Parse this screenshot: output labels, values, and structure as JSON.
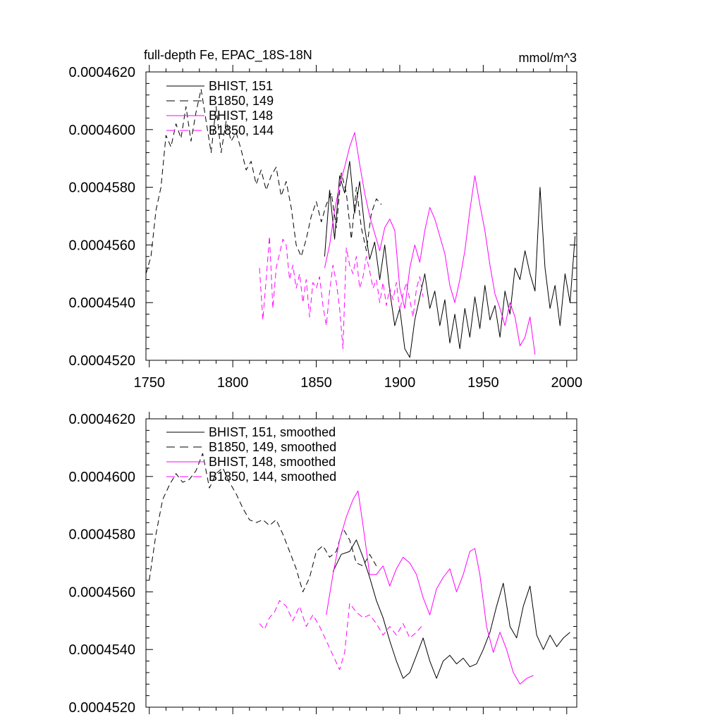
{
  "chart_data": [
    {
      "type": "line",
      "title": "full-depth Fe, EPAC_18S-18N",
      "units": "mmol/m^3",
      "xlim": [
        1748,
        2006
      ],
      "ylim": [
        0.000452,
        0.000462
      ],
      "xticks": [
        1750,
        1800,
        1850,
        1900,
        1950,
        2000
      ],
      "xtick_labels": [
        "1750",
        "1800",
        "1850",
        "1900",
        "1950",
        "2000"
      ],
      "yticks": [
        0.000452,
        0.000454,
        0.000456,
        0.000458,
        0.00046,
        0.000462
      ],
      "ytick_labels": [
        "0.0004520",
        "0.0004540",
        "0.0004560",
        "0.0004580",
        "0.0004600",
        "0.0004620"
      ],
      "series": [
        {
          "name": "BHIST, 151",
          "color": "#000000",
          "dash": "solid",
          "x": [
            1855,
            1858,
            1861,
            1864,
            1867,
            1870,
            1873,
            1876,
            1879,
            1882,
            1885,
            1888,
            1891,
            1894,
            1897,
            1900,
            1903,
            1906,
            1909,
            1912,
            1915,
            1918,
            1921,
            1924,
            1927,
            1930,
            1933,
            1936,
            1939,
            1942,
            1945,
            1948,
            1951,
            1954,
            1957,
            1960,
            1963,
            1966,
            1969,
            1972,
            1975,
            1978,
            1981,
            1984,
            1987,
            1990,
            1993,
            1996,
            1999,
            2002,
            2005
          ],
          "y": [
            0.0004556,
            0.0004579,
            0.0004562,
            0.0004584,
            0.0004578,
            0.0004589,
            0.0004571,
            0.0004582,
            0.0004566,
            0.0004555,
            0.0004561,
            0.0004548,
            0.000456,
            0.0004544,
            0.0004532,
            0.0004538,
            0.0004524,
            0.0004521,
            0.0004534,
            0.0004542,
            0.000455,
            0.0004538,
            0.0004544,
            0.0004532,
            0.0004541,
            0.0004526,
            0.0004536,
            0.0004524,
            0.0004538,
            0.0004528,
            0.0004542,
            0.0004531,
            0.0004546,
            0.0004534,
            0.0004539,
            0.0004528,
            0.0004544,
            0.0004536,
            0.0004552,
            0.0004548,
            0.0004558,
            0.000455,
            0.0004544,
            0.000458,
            0.0004552,
            0.0004538,
            0.0004546,
            0.0004532,
            0.000455,
            0.000454,
            0.0004563
          ]
        },
        {
          "name": "B1850, 149",
          "color": "#000000",
          "dash": "dashed",
          "x": [
            1748,
            1751,
            1754,
            1757,
            1760,
            1763,
            1766,
            1769,
            1772,
            1775,
            1778,
            1781,
            1784,
            1787,
            1790,
            1793,
            1796,
            1799,
            1802,
            1805,
            1808,
            1811,
            1814,
            1817,
            1820,
            1823,
            1826,
            1829,
            1832,
            1835,
            1838,
            1841,
            1844,
            1847,
            1850,
            1853,
            1856,
            1859,
            1862,
            1865,
            1868,
            1871,
            1874,
            1877,
            1880,
            1883,
            1886,
            1889
          ],
          "y": [
            0.000455,
            0.0004556,
            0.0004572,
            0.000458,
            0.0004598,
            0.0004594,
            0.0004602,
            0.0004597,
            0.0004608,
            0.0004596,
            0.0004606,
            0.0004614,
            0.0004603,
            0.0004592,
            0.0004608,
            0.0004592,
            0.0004603,
            0.0004596,
            0.0004599,
            0.0004593,
            0.0004586,
            0.0004589,
            0.0004581,
            0.0004586,
            0.0004579,
            0.0004584,
            0.0004587,
            0.0004577,
            0.0004582,
            0.0004573,
            0.000456,
            0.0004556,
            0.0004562,
            0.000457,
            0.0004575,
            0.0004568,
            0.0004574,
            0.0004578,
            0.0004566,
            0.0004585,
            0.0004578,
            0.0004562,
            0.000458,
            0.0004566,
            0.0004558,
            0.0004571,
            0.0004576,
            0.0004574
          ]
        },
        {
          "name": "BHIST, 148",
          "color": "#ff00ff",
          "dash": "solid",
          "x": [
            1855,
            1858,
            1861,
            1864,
            1867,
            1870,
            1873,
            1876,
            1879,
            1882,
            1885,
            1888,
            1891,
            1894,
            1897,
            1900,
            1903,
            1906,
            1909,
            1912,
            1915,
            1918,
            1921,
            1924,
            1927,
            1930,
            1933,
            1936,
            1939,
            1942,
            1945,
            1948,
            1951,
            1954,
            1957,
            1960,
            1963,
            1966,
            1969,
            1972,
            1975,
            1978,
            1981
          ],
          "y": [
            0.0004552,
            0.000456,
            0.0004572,
            0.0004581,
            0.0004587,
            0.0004594,
            0.0004599,
            0.0004588,
            0.0004578,
            0.000457,
            0.0004564,
            0.0004558,
            0.0004566,
            0.0004569,
            0.0004565,
            0.0004545,
            0.0004538,
            0.0004552,
            0.000456,
            0.0004554,
            0.0004565,
            0.0004573,
            0.0004569,
            0.0004563,
            0.0004557,
            0.0004546,
            0.000454,
            0.0004548,
            0.0004558,
            0.0004572,
            0.0004584,
            0.0004574,
            0.0004565,
            0.0004553,
            0.0004543,
            0.0004538,
            0.0004532,
            0.000454,
            0.0004535,
            0.0004525,
            0.0004528,
            0.0004535,
            0.0004522
          ]
        },
        {
          "name": "B1850, 144",
          "color": "#ff00ff",
          "dash": "dashed",
          "x": [
            1816,
            1818,
            1820,
            1822,
            1824,
            1826,
            1828,
            1830,
            1832,
            1834,
            1836,
            1838,
            1840,
            1842,
            1844,
            1846,
            1848,
            1850,
            1852,
            1854,
            1856,
            1858,
            1860,
            1862,
            1864,
            1866,
            1868,
            1870,
            1872,
            1874,
            1876,
            1878,
            1880,
            1882,
            1884,
            1886,
            1888,
            1890,
            1892,
            1894,
            1896,
            1898,
            1900,
            1902,
            1904,
            1906,
            1908,
            1910,
            1912,
            1914
          ],
          "y": [
            0.0004552,
            0.0004534,
            0.0004548,
            0.0004563,
            0.0004538,
            0.0004552,
            0.0004557,
            0.0004562,
            0.000456,
            0.0004548,
            0.0004553,
            0.0004545,
            0.000455,
            0.000454,
            0.0004548,
            0.0004535,
            0.0004547,
            0.0004545,
            0.0004549,
            0.0004539,
            0.0004532,
            0.0004544,
            0.0004553,
            0.0004547,
            0.0004538,
            0.0004524,
            0.0004559,
            0.0004553,
            0.000455,
            0.0004556,
            0.0004545,
            0.0004549,
            0.0004556,
            0.0004551,
            0.0004545,
            0.0004548,
            0.000454,
            0.0004547,
            0.0004539,
            0.0004545,
            0.0004541,
            0.0004547,
            0.0004537,
            0.0004543,
            0.0004547,
            0.0004541,
            0.0004535,
            0.0004545,
            0.0004549,
            0.0004542
          ]
        }
      ]
    },
    {
      "type": "line",
      "xlim": [
        1748,
        2006
      ],
      "ylim": [
        0.000452,
        0.000462
      ],
      "xticks": [
        1750,
        1800,
        1850,
        1900,
        1950,
        2000
      ],
      "yticks": [
        0.000452,
        0.000454,
        0.000456,
        0.000458,
        0.00046,
        0.000462
      ],
      "ytick_labels": [
        "0.0004520",
        "0.0004540",
        "0.0004560",
        "0.0004580",
        "0.0004600",
        "0.0004620"
      ],
      "series": [
        {
          "name": "BHIST, 151, smoothed",
          "color": "#000000",
          "dash": "solid",
          "x": [
            1860,
            1865,
            1870,
            1874,
            1878,
            1882,
            1886,
            1890,
            1894,
            1898,
            1902,
            1906,
            1910,
            1914,
            1918,
            1922,
            1926,
            1930,
            1934,
            1938,
            1942,
            1946,
            1950,
            1954,
            1958,
            1962,
            1966,
            1970,
            1974,
            1978,
            1982,
            1986,
            1990,
            1994,
            1998,
            2002
          ],
          "y": [
            0.0004567,
            0.0004573,
            0.0004574,
            0.0004578,
            0.0004572,
            0.0004565,
            0.0004557,
            0.0004551,
            0.0004543,
            0.0004536,
            0.000453,
            0.0004532,
            0.0004538,
            0.0004544,
            0.0004536,
            0.000453,
            0.0004536,
            0.0004538,
            0.0004535,
            0.0004537,
            0.0004534,
            0.0004535,
            0.000454,
            0.0004546,
            0.0004555,
            0.0004563,
            0.0004548,
            0.0004544,
            0.0004555,
            0.0004562,
            0.0004545,
            0.000454,
            0.0004545,
            0.0004541,
            0.0004544,
            0.0004546
          ]
        },
        {
          "name": "B1850, 149, smoothed",
          "color": "#000000",
          "dash": "dashed",
          "x": [
            1750,
            1754,
            1758,
            1762,
            1766,
            1770,
            1774,
            1778,
            1782,
            1786,
            1790,
            1794,
            1798,
            1802,
            1806,
            1810,
            1814,
            1818,
            1822,
            1826,
            1830,
            1834,
            1838,
            1842,
            1846,
            1850,
            1854,
            1858,
            1862,
            1866,
            1870,
            1874,
            1878,
            1882,
            1886
          ],
          "y": [
            0.0004564,
            0.000458,
            0.0004592,
            0.0004597,
            0.0004601,
            0.0004598,
            0.0004599,
            0.0004602,
            0.0004608,
            0.0004596,
            0.0004601,
            0.0004603,
            0.0004598,
            0.0004594,
            0.0004589,
            0.0004585,
            0.0004584,
            0.0004585,
            0.0004583,
            0.0004585,
            0.000458,
            0.0004574,
            0.0004568,
            0.000456,
            0.0004565,
            0.0004574,
            0.0004576,
            0.0004572,
            0.0004574,
            0.0004582,
            0.0004578,
            0.000457,
            0.0004569,
            0.0004573,
            0.0004569
          ]
        },
        {
          "name": "BHIST, 148, smoothed",
          "color": "#ff00ff",
          "dash": "solid",
          "x": [
            1856,
            1860,
            1864,
            1868,
            1872,
            1875,
            1878,
            1882,
            1886,
            1890,
            1894,
            1898,
            1902,
            1906,
            1910,
            1914,
            1918,
            1922,
            1926,
            1930,
            1934,
            1938,
            1942,
            1945,
            1948,
            1952,
            1956,
            1960,
            1964,
            1968,
            1972,
            1976,
            1980
          ],
          "y": [
            0.0004552,
            0.0004566,
            0.0004578,
            0.0004586,
            0.0004592,
            0.0004595,
            0.0004583,
            0.0004566,
            0.0004566,
            0.0004569,
            0.0004562,
            0.0004568,
            0.0004572,
            0.000457,
            0.0004566,
            0.0004558,
            0.0004552,
            0.0004561,
            0.0004565,
            0.0004568,
            0.000456,
            0.0004566,
            0.0004574,
            0.0004575,
            0.0004566,
            0.0004548,
            0.0004539,
            0.0004546,
            0.000454,
            0.0004532,
            0.0004528,
            0.000453,
            0.0004531
          ]
        },
        {
          "name": "B1850, 144, smoothed",
          "color": "#ff00ff",
          "dash": "dashed",
          "x": [
            1816,
            1819,
            1822,
            1825,
            1828,
            1832,
            1836,
            1840,
            1844,
            1848,
            1852,
            1856,
            1860,
            1864,
            1867,
            1870,
            1874,
            1878,
            1882,
            1886,
            1890,
            1894,
            1898,
            1902,
            1906,
            1910,
            1913
          ],
          "y": [
            0.0004549,
            0.0004547,
            0.0004551,
            0.0004553,
            0.0004557,
            0.0004555,
            0.000455,
            0.0004555,
            0.0004548,
            0.0004552,
            0.0004548,
            0.0004543,
            0.0004538,
            0.0004533,
            0.0004539,
            0.0004556,
            0.0004553,
            0.0004551,
            0.0004552,
            0.0004549,
            0.0004545,
            0.0004548,
            0.0004545,
            0.0004549,
            0.0004544,
            0.0004546,
            0.0004548
          ]
        }
      ]
    }
  ]
}
